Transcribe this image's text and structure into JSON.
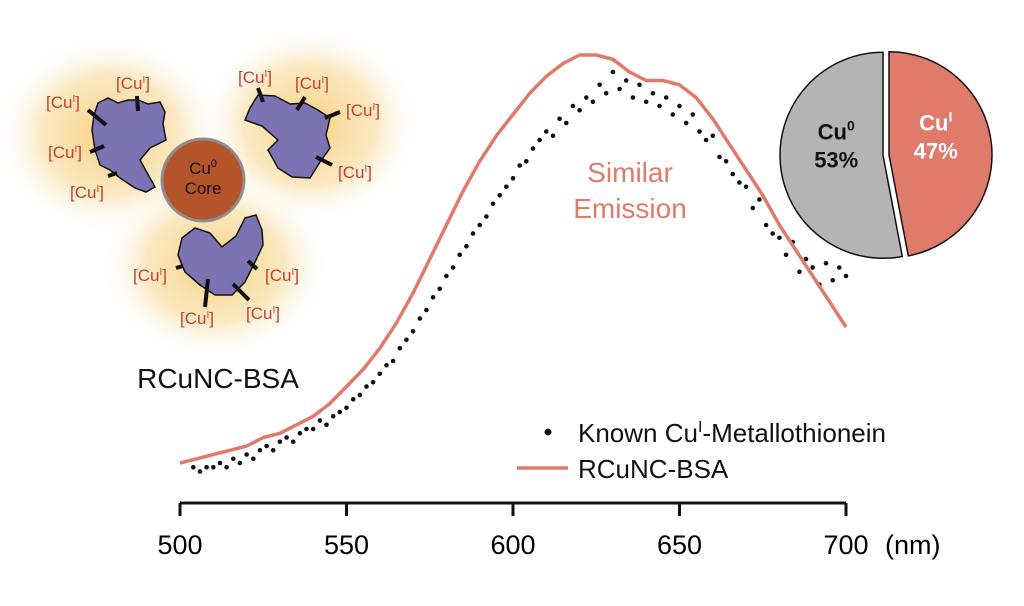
{
  "illustration": {
    "cu_label": {
      "pre": "[Cu",
      "sup": "I",
      "post": "]"
    },
    "core_line1_pre": "Cu",
    "core_line1_sup": "0",
    "core_line2": "Core",
    "caption": "RCuNC-BSA"
  },
  "annotation": {
    "line1": "Similar",
    "line2": "Emission"
  },
  "colors": {
    "line": "#e07a6a",
    "dots": "#111111",
    "pie_cu0": "#b4b4b4",
    "pie_cui": "#e07b6b",
    "protein": "#7c74b2",
    "core": "#b5532a",
    "cu_text": "#c4402f"
  },
  "chart_data": [
    {
      "type": "scatter+line",
      "title": "",
      "xlabel": "(nm)",
      "ylabel": "",
      "xlim": [
        500,
        700
      ],
      "ylim": [
        0,
        1
      ],
      "xticks": [
        "500",
        "550",
        "600",
        "650",
        "700"
      ],
      "legend": {
        "placement": "bottom-right",
        "entries": [
          {
            "pre": "Known Cu",
            "sup": "I",
            "post": "-Metallothionein",
            "marker": "dot"
          },
          {
            "label": "RCuNC-BSA",
            "marker": "line"
          }
        ]
      },
      "series": [
        {
          "name": "Known CuI-Metallothionein",
          "kind": "scatter",
          "points": [
            [
              504,
              0.03
            ],
            [
              506,
              0.02
            ],
            [
              508,
              0.03
            ],
            [
              510,
              0.03
            ],
            [
              512,
              0.04
            ],
            [
              514,
              0.03
            ],
            [
              516,
              0.05
            ],
            [
              518,
              0.04
            ],
            [
              520,
              0.06
            ],
            [
              522,
              0.05
            ],
            [
              524,
              0.07
            ],
            [
              526,
              0.08
            ],
            [
              528,
              0.07
            ],
            [
              530,
              0.09
            ],
            [
              532,
              0.1
            ],
            [
              534,
              0.09
            ],
            [
              536,
              0.11
            ],
            [
              538,
              0.12
            ],
            [
              540,
              0.12
            ],
            [
              542,
              0.14
            ],
            [
              544,
              0.13
            ],
            [
              546,
              0.15
            ],
            [
              548,
              0.16
            ],
            [
              550,
              0.17
            ],
            [
              552,
              0.19
            ],
            [
              554,
              0.2
            ],
            [
              556,
              0.22
            ],
            [
              558,
              0.23
            ],
            [
              560,
              0.25
            ],
            [
              562,
              0.27
            ],
            [
              564,
              0.28
            ],
            [
              566,
              0.31
            ],
            [
              568,
              0.33
            ],
            [
              570,
              0.35
            ],
            [
              572,
              0.38
            ],
            [
              574,
              0.4
            ],
            [
              576,
              0.43
            ],
            [
              578,
              0.45
            ],
            [
              580,
              0.48
            ],
            [
              582,
              0.5
            ],
            [
              584,
              0.53
            ],
            [
              586,
              0.55
            ],
            [
              588,
              0.58
            ],
            [
              590,
              0.6
            ],
            [
              592,
              0.62
            ],
            [
              594,
              0.65
            ],
            [
              596,
              0.67
            ],
            [
              598,
              0.69
            ],
            [
              600,
              0.71
            ],
            [
              602,
              0.74
            ],
            [
              604,
              0.75
            ],
            [
              606,
              0.78
            ],
            [
              608,
              0.8
            ],
            [
              610,
              0.82
            ],
            [
              612,
              0.81
            ],
            [
              614,
              0.85
            ],
            [
              616,
              0.84
            ],
            [
              618,
              0.88
            ],
            [
              620,
              0.87
            ],
            [
              622,
              0.9
            ],
            [
              624,
              0.89
            ],
            [
              626,
              0.93
            ],
            [
              628,
              0.91
            ],
            [
              630,
              0.96
            ],
            [
              632,
              0.92
            ],
            [
              634,
              0.94
            ],
            [
              636,
              0.9
            ],
            [
              638,
              0.93
            ],
            [
              640,
              0.89
            ],
            [
              642,
              0.91
            ],
            [
              644,
              0.88
            ],
            [
              646,
              0.9
            ],
            [
              648,
              0.86
            ],
            [
              650,
              0.88
            ],
            [
              652,
              0.84
            ],
            [
              654,
              0.86
            ],
            [
              656,
              0.82
            ],
            [
              658,
              0.8
            ],
            [
              660,
              0.81
            ],
            [
              662,
              0.76
            ],
            [
              664,
              0.75
            ],
            [
              666,
              0.72
            ],
            [
              668,
              0.7
            ],
            [
              670,
              0.69
            ],
            [
              672,
              0.64
            ],
            [
              674,
              0.66
            ],
            [
              676,
              0.6
            ],
            [
              678,
              0.58
            ],
            [
              680,
              0.57
            ],
            [
              682,
              0.53
            ],
            [
              684,
              0.56
            ],
            [
              686,
              0.49
            ],
            [
              688,
              0.52
            ],
            [
              690,
              0.5
            ],
            [
              692,
              0.46
            ],
            [
              694,
              0.51
            ],
            [
              696,
              0.47
            ],
            [
              698,
              0.5
            ],
            [
              700,
              0.48
            ]
          ]
        },
        {
          "name": "RCuNC-BSA",
          "kind": "line",
          "points": [
            [
              500,
              0.04
            ],
            [
              505,
              0.05
            ],
            [
              510,
              0.06
            ],
            [
              515,
              0.07
            ],
            [
              520,
              0.08
            ],
            [
              525,
              0.1
            ],
            [
              530,
              0.11
            ],
            [
              535,
              0.13
            ],
            [
              540,
              0.15
            ],
            [
              545,
              0.18
            ],
            [
              550,
              0.22
            ],
            [
              555,
              0.26
            ],
            [
              560,
              0.31
            ],
            [
              565,
              0.37
            ],
            [
              570,
              0.44
            ],
            [
              575,
              0.52
            ],
            [
              580,
              0.6
            ],
            [
              585,
              0.68
            ],
            [
              590,
              0.75
            ],
            [
              595,
              0.81
            ],
            [
              600,
              0.86
            ],
            [
              605,
              0.91
            ],
            [
              610,
              0.95
            ],
            [
              615,
              0.98
            ],
            [
              620,
              1.0
            ],
            [
              625,
              1.0
            ],
            [
              630,
              0.99
            ],
            [
              635,
              0.96
            ],
            [
              640,
              0.94
            ],
            [
              645,
              0.94
            ],
            [
              650,
              0.93
            ],
            [
              655,
              0.9
            ],
            [
              660,
              0.85
            ],
            [
              665,
              0.79
            ],
            [
              670,
              0.73
            ],
            [
              675,
              0.67
            ],
            [
              680,
              0.6
            ],
            [
              685,
              0.54
            ],
            [
              690,
              0.48
            ],
            [
              695,
              0.42
            ],
            [
              700,
              0.36
            ]
          ]
        }
      ]
    },
    {
      "type": "pie",
      "slices": [
        {
          "pre": "Cu",
          "sup": "I",
          "pct_label": "47%",
          "value": 47
        },
        {
          "pre": "Cu",
          "sup": "0",
          "pct_label": "53%",
          "value": 53
        }
      ]
    }
  ]
}
